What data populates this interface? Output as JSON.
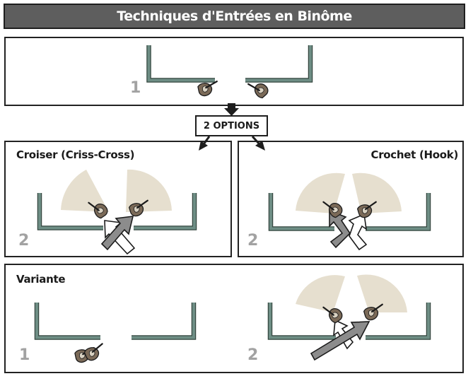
{
  "title": "Techniques d'Entrées en Binôme",
  "options_label": "2 OPTIONS",
  "panels": {
    "top": {
      "step": "1"
    },
    "cross": {
      "label": "Croiser (Criss-Cross)",
      "step": "2"
    },
    "hook": {
      "label": "Crochet (Hook)",
      "step": "2"
    },
    "variant": {
      "label": "Variante",
      "step_left": "1",
      "step_right": "2"
    }
  },
  "colors": {
    "wall": "#6e8e85",
    "wall_edge": "#34463f",
    "sector": "#e6dfcf",
    "operator": "#7b6a58",
    "arrow_gray": "#8c8c8c",
    "number": "#a2a2a2",
    "title_bg": "#5e5e5e"
  }
}
